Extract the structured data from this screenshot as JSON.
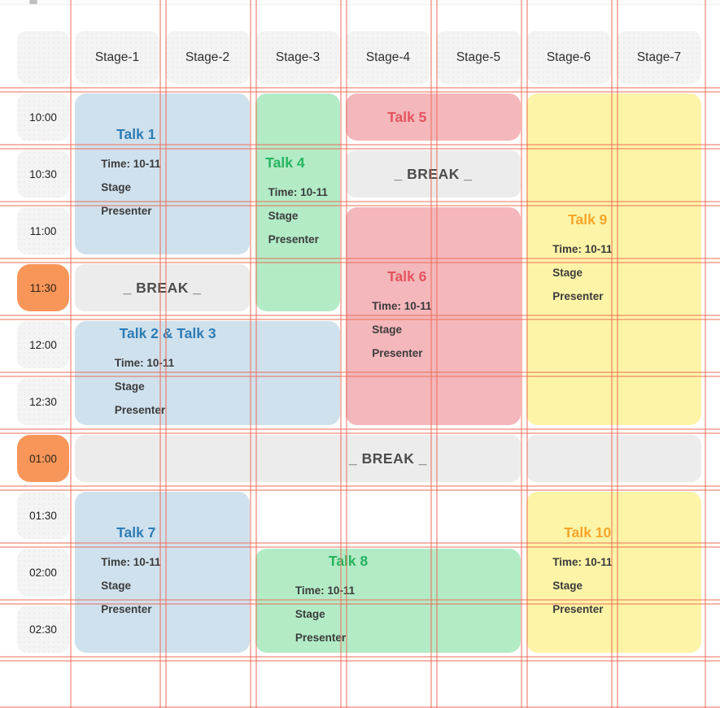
{
  "stages": [
    "Stage-1",
    "Stage-2",
    "Stage-3",
    "Stage-4",
    "Stage-5",
    "Stage-6",
    "Stage-7"
  ],
  "time_slots": [
    {
      "label": "10:00",
      "highlight": false
    },
    {
      "label": "10:30",
      "highlight": false
    },
    {
      "label": "11:00",
      "highlight": false
    },
    {
      "label": "11:30",
      "highlight": true
    },
    {
      "label": "12:00",
      "highlight": false
    },
    {
      "label": "12:30",
      "highlight": false
    },
    {
      "label": "01:00",
      "highlight": true
    },
    {
      "label": "01:30",
      "highlight": false
    },
    {
      "label": "02:00",
      "highlight": false
    },
    {
      "label": "02:30",
      "highlight": false
    }
  ],
  "talks": [
    {
      "id": "talk-1",
      "title": "Talk 1",
      "color": "blue",
      "cols": [
        1,
        2
      ],
      "rows": [
        1,
        3
      ],
      "details": [
        "Time: 10-11",
        "Stage",
        "Presenter"
      ]
    },
    {
      "id": "talk-4",
      "title": "Talk 4",
      "color": "green",
      "cols": [
        3,
        3
      ],
      "rows": [
        1,
        4
      ],
      "details": [
        "Time: 10-11",
        "Stage",
        "Presenter"
      ]
    },
    {
      "id": "talk-5",
      "title": "Talk 5",
      "color": "red",
      "cols": [
        4,
        5
      ],
      "rows": [
        1,
        1
      ],
      "details": []
    },
    {
      "id": "talk-9",
      "title": "Talk 9",
      "color": "yellow",
      "cols": [
        6,
        7
      ],
      "rows": [
        1,
        6
      ],
      "details": [
        "Time: 10-11",
        "Stage",
        "Presenter"
      ]
    },
    {
      "id": "talk-6",
      "title": "Talk 6",
      "color": "red",
      "cols": [
        4,
        5
      ],
      "rows": [
        3,
        6
      ],
      "details": [
        "Time: 10-11",
        "Stage",
        "Presenter"
      ]
    },
    {
      "id": "talk-2-3",
      "title": "Talk 2 & Talk 3",
      "color": "blue",
      "cols": [
        1,
        3
      ],
      "rows": [
        5,
        6
      ],
      "details": [
        "Time: 10-11",
        "Stage",
        "Presenter"
      ]
    },
    {
      "id": "talk-7",
      "title": "Talk 7",
      "color": "blue",
      "cols": [
        1,
        2
      ],
      "rows": [
        8,
        10
      ],
      "details": [
        "Time: 10-11",
        "Stage",
        "Presenter"
      ]
    },
    {
      "id": "talk-8",
      "title": "Talk 8",
      "color": "green",
      "cols": [
        3,
        5
      ],
      "rows": [
        9,
        10
      ],
      "details": [
        "Time: 10-11",
        "Stage",
        "Presenter"
      ]
    },
    {
      "id": "talk-10",
      "title": "Talk 10",
      "color": "yellow",
      "cols": [
        6,
        7
      ],
      "rows": [
        8,
        10
      ],
      "details": [
        "Time: 10-11",
        "Stage",
        "Presenter"
      ]
    }
  ],
  "breaks": [
    {
      "id": "break-1030",
      "label": "_ BREAK _",
      "row": 2,
      "segments": [
        [
          4,
          5
        ]
      ],
      "label_cols": [
        4,
        5
      ]
    },
    {
      "id": "break-1130",
      "label": "_ BREAK _",
      "row": 4,
      "segments": [
        [
          1,
          2
        ]
      ],
      "label_cols": [
        1,
        2
      ]
    },
    {
      "id": "break-0100",
      "label": "_ BREAK _",
      "row": 7,
      "segments": [
        [
          1,
          5
        ],
        [
          6,
          7
        ]
      ],
      "label_cols": [
        1,
        7
      ]
    }
  ],
  "palette": {
    "blue": {
      "bg": "#cfe1ed",
      "title": "#2d7cb5"
    },
    "green": {
      "bg": "#b2ebc6",
      "title": "#27b45f"
    },
    "red": {
      "bg": "#f4b7bb",
      "title": "#e4545e"
    },
    "yellow": {
      "bg": "#fdf4a7",
      "title": "#f6a62a"
    }
  },
  "styles": {
    "header_bg": "#f4f4f4",
    "break_bg": "#ececec",
    "break_text": "#4d4d4d",
    "time_highlight_bg": "#f8965a",
    "time_highlight_text": "#2f2315",
    "overlay_line_color": "rgba(238,110,88,0.5)"
  },
  "overlay": {
    "vlines": [
      86,
      196,
      203,
      307,
      314,
      418,
      425,
      529,
      536,
      640,
      647,
      751,
      758,
      866
    ],
    "hlines": [
      107,
      112,
      177,
      182,
      247,
      252,
      317,
      322,
      387,
      392,
      457,
      462,
      527,
      532,
      597,
      602,
      667,
      672,
      737,
      742,
      807,
      812,
      869
    ]
  }
}
